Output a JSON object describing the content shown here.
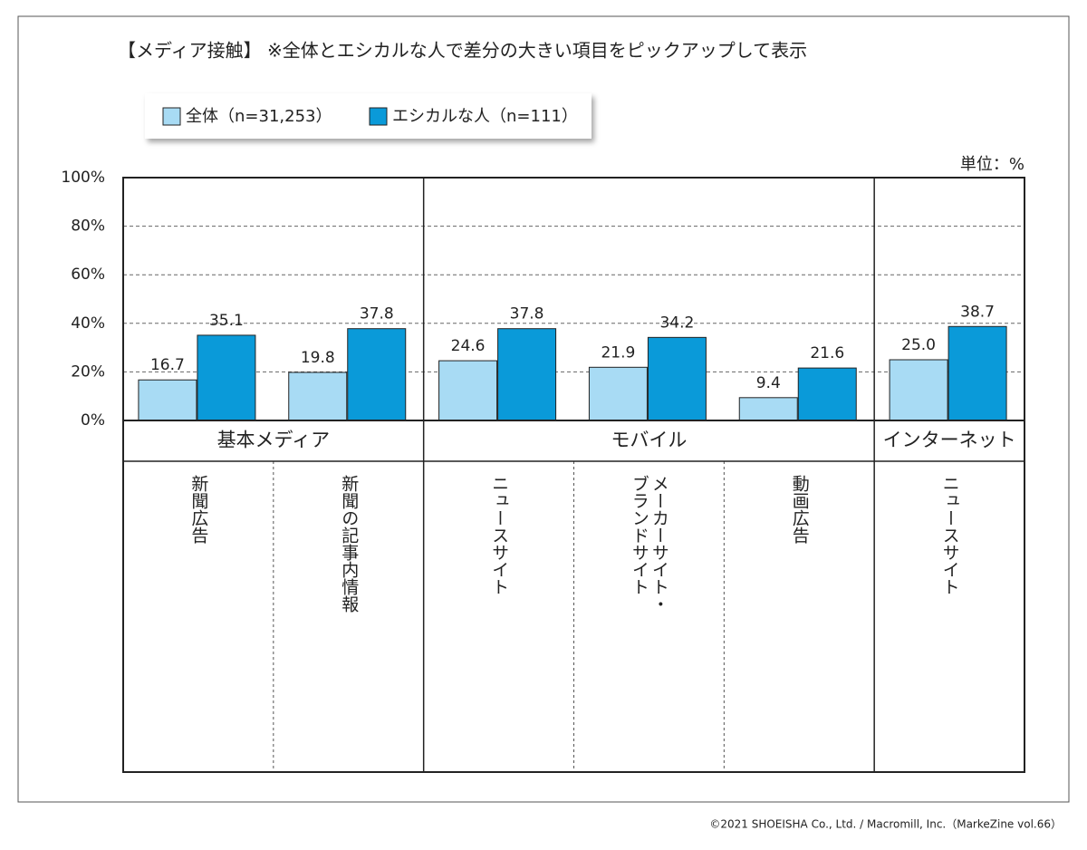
{
  "chart_data": {
    "type": "bar",
    "title": "【メディア接触】 ※全体とエシカルな人で差分の大きい項目をピックアップして表示",
    "unit_label": "単位：%",
    "groups": [
      {
        "name": "基本メディア",
        "categories": [
          [
            "新聞広告"
          ],
          [
            "新聞の記事内情報"
          ]
        ]
      },
      {
        "name": "モバイル",
        "categories": [
          [
            "ニュースサイト"
          ],
          [
            "メーカーサイト・",
            "ブランドサイト"
          ],
          [
            "動画広告"
          ]
        ]
      },
      {
        "name": "インターネット",
        "categories": [
          [
            "ニュースサイト"
          ]
        ]
      }
    ],
    "series": [
      {
        "name": "全体（n=31,253）",
        "color": "#a8dbf4",
        "values": [
          16.7,
          19.8,
          24.6,
          21.9,
          9.4,
          25.0
        ],
        "value_labels": [
          "16.7",
          "19.8",
          "24.6",
          "21.9",
          "9.4",
          "25.0"
        ]
      },
      {
        "name": "エシカルな人（n=111）",
        "color": "#0a9ad9",
        "values": [
          35.1,
          37.8,
          37.8,
          34.2,
          21.6,
          38.7
        ],
        "value_labels": [
          "35.1",
          "37.8",
          "37.8",
          "34.2",
          "21.6",
          "38.7"
        ]
      }
    ],
    "ylim": [
      0,
      100
    ],
    "yticks": [
      {
        "value": 0,
        "label": "0%"
      },
      {
        "value": 20,
        "label": "20%"
      },
      {
        "value": 40,
        "label": "40%"
      },
      {
        "value": 60,
        "label": "60%"
      },
      {
        "value": 80,
        "label": "80%"
      },
      {
        "value": 100,
        "label": "100%"
      }
    ],
    "grid": true,
    "footer": "©2021 SHOEISHA Co., Ltd. / Macromill, Inc.（MarkeZine vol.66）"
  }
}
